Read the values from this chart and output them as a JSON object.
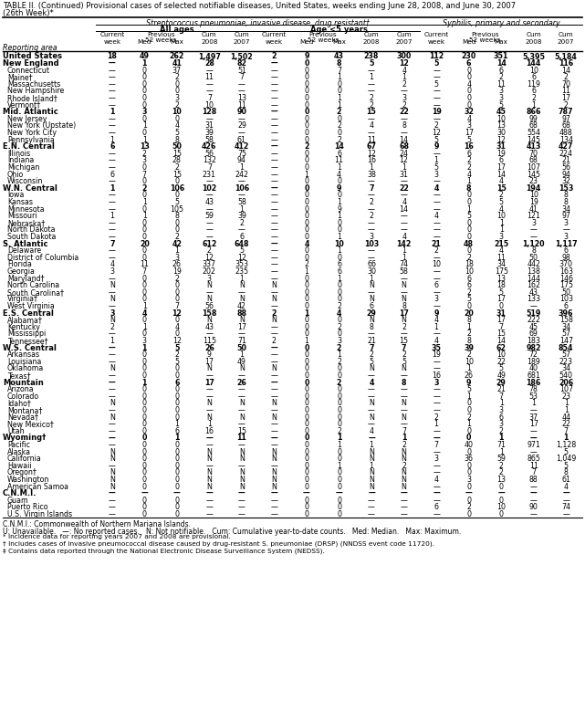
{
  "title1": "TABLE II. (Continued) Provisional cases of selected notifiable diseases, United States, weeks ending June 28, 2008, and June 30, 2007",
  "title2": "(26th Week)*",
  "col_group_title": "Streptococcus pneumoniae, invasive disease, drug resistant†",
  "subgroup1": "All ages",
  "subgroup2": "Age <5 years",
  "subgroup3": "Syphilis, primary and secondary",
  "footnotes": [
    "C.N.M.I.: Commonwealth of Northern Mariana Islands.",
    "U: Unavailable.   —: No reported cases.   N: Not notifiable.   Cum: Cumulative year-to-date counts.   Med: Median.   Max: Maximum.",
    "* Incidence data for reporting years 2007 and 2008 are provisional.",
    "† Includes cases of invasive pneumococcal disease caused by drug-resistant S. pneumoniae (DRSP) (NNDSS event code 11720).",
    "‡ Contains data reported through the National Electronic Disease Surveillance System (NEDSS)."
  ],
  "rows": [
    [
      "United States",
      "18",
      "49",
      "262",
      "1,497",
      "1,502",
      "2",
      "9",
      "43",
      "238",
      "300",
      "112",
      "230",
      "351",
      "5,395",
      "5,184"
    ],
    [
      "New England",
      "—",
      "1",
      "41",
      "28",
      "82",
      "—",
      "0",
      "8",
      "5",
      "12",
      "5",
      "6",
      "14",
      "144",
      "116"
    ],
    [
      "Connecticut",
      "—",
      "0",
      "37",
      "—",
      "51",
      "—",
      "0",
      "7",
      "—",
      "4",
      "—",
      "0",
      "6",
      "10",
      "14"
    ],
    [
      "Maine†",
      "—",
      "0",
      "2",
      "11",
      "7",
      "—",
      "0",
      "1",
      "1",
      "1",
      "—",
      "0",
      "2",
      "6",
      "2"
    ],
    [
      "Massachusetts",
      "—",
      "0",
      "0",
      "—",
      "—",
      "—",
      "0",
      "0",
      "—",
      "2",
      "5",
      "4",
      "11",
      "119",
      "70"
    ],
    [
      "New Hampshire",
      "—",
      "0",
      "0",
      "—",
      "—",
      "—",
      "0",
      "0",
      "—",
      "—",
      "—",
      "0",
      "3",
      "6",
      "11"
    ],
    [
      "Rhode Island†",
      "—",
      "0",
      "3",
      "7",
      "13",
      "—",
      "0",
      "1",
      "2",
      "3",
      "—",
      "0",
      "3",
      "2",
      "17"
    ],
    [
      "Vermont†",
      "—",
      "0",
      "2",
      "10",
      "11",
      "—",
      "0",
      "1",
      "2",
      "2",
      "—",
      "0",
      "5",
      "1",
      "2"
    ],
    [
      "Mid. Atlantic",
      "1",
      "3",
      "10",
      "128",
      "90",
      "—",
      "0",
      "2",
      "15",
      "22",
      "19",
      "32",
      "45",
      "866",
      "787"
    ],
    [
      "New Jersey",
      "—",
      "0",
      "0",
      "—",
      "—",
      "—",
      "0",
      "0",
      "—",
      "—",
      "—",
      "4",
      "10",
      "99",
      "97"
    ],
    [
      "New York (Upstate)",
      "—",
      "1",
      "4",
      "31",
      "29",
      "—",
      "0",
      "2",
      "4",
      "8",
      "2",
      "3",
      "13",
      "68",
      "68"
    ],
    [
      "New York City",
      "—",
      "0",
      "5",
      "39",
      "—",
      "—",
      "0",
      "0",
      "—",
      "—",
      "12",
      "17",
      "30",
      "554",
      "488"
    ],
    [
      "Pennsylvania",
      "1",
      "1",
      "8",
      "58",
      "61",
      "—",
      "0",
      "2",
      "11",
      "14",
      "5",
      "5",
      "12",
      "145",
      "134"
    ],
    [
      "E.N. Central",
      "6",
      "13",
      "50",
      "426",
      "412",
      "—",
      "2",
      "14",
      "67",
      "68",
      "9",
      "16",
      "31",
      "413",
      "427"
    ],
    [
      "Illinois",
      "—",
      "2",
      "15",
      "56",
      "75",
      "—",
      "0",
      "6",
      "12",
      "24",
      "—",
      "6",
      "19",
      "70",
      "224"
    ],
    [
      "Indiana",
      "—",
      "3",
      "28",
      "132",
      "94",
      "—",
      "0",
      "11",
      "16",
      "12",
      "1",
      "2",
      "6",
      "68",
      "21"
    ],
    [
      "Michigan",
      "—",
      "0",
      "2",
      "7",
      "1",
      "—",
      "0",
      "1",
      "1",
      "1",
      "5",
      "2",
      "17",
      "107",
      "56"
    ],
    [
      "Ohio",
      "6",
      "7",
      "15",
      "231",
      "242",
      "—",
      "1",
      "4",
      "38",
      "31",
      "3",
      "4",
      "14",
      "145",
      "94"
    ],
    [
      "Wisconsin",
      "—",
      "0",
      "0",
      "—",
      "—",
      "—",
      "0",
      "0",
      "—",
      "—",
      "—",
      "1",
      "4",
      "23",
      "32"
    ],
    [
      "W.N. Central",
      "1",
      "2",
      "106",
      "102",
      "106",
      "—",
      "0",
      "9",
      "7",
      "22",
      "4",
      "8",
      "15",
      "194",
      "153"
    ],
    [
      "Iowa",
      "—",
      "0",
      "0",
      "—",
      "—",
      "—",
      "0",
      "0",
      "—",
      "—",
      "—",
      "0",
      "2",
      "10",
      "8"
    ],
    [
      "Kansas",
      "—",
      "1",
      "5",
      "43",
      "58",
      "—",
      "0",
      "1",
      "2",
      "4",
      "—",
      "0",
      "5",
      "19",
      "8"
    ],
    [
      "Minnesota",
      "—",
      "0",
      "105",
      "—",
      "1",
      "—",
      "0",
      "9",
      "—",
      "14",
      "—",
      "1",
      "4",
      "41",
      "34"
    ],
    [
      "Missouri",
      "1",
      "1",
      "8",
      "59",
      "39",
      "—",
      "0",
      "1",
      "2",
      "—",
      "4",
      "5",
      "10",
      "121",
      "97"
    ],
    [
      "Nebraska†",
      "—",
      "0",
      "0",
      "—",
      "2",
      "—",
      "0",
      "0",
      "—",
      "—",
      "—",
      "0",
      "1",
      "3",
      "3"
    ],
    [
      "North Dakota",
      "—",
      "0",
      "0",
      "—",
      "—",
      "—",
      "0",
      "0",
      "—",
      "—",
      "—",
      "0",
      "1",
      "—",
      "—"
    ],
    [
      "South Dakota",
      "—",
      "0",
      "2",
      "—",
      "6",
      "—",
      "0",
      "1",
      "3",
      "4",
      "—",
      "0",
      "3",
      "—",
      "3"
    ],
    [
      "S. Atlantic",
      "7",
      "20",
      "42",
      "612",
      "648",
      "—",
      "4",
      "10",
      "103",
      "142",
      "21",
      "48",
      "215",
      "1,120",
      "1,117"
    ],
    [
      "Delaware",
      "—",
      "0",
      "1",
      "2",
      "5",
      "—",
      "0",
      "1",
      "—",
      "1",
      "2",
      "0",
      "4",
      "8",
      "6"
    ],
    [
      "District of Columbia",
      "—",
      "0",
      "3",
      "12",
      "12",
      "—",
      "0",
      "0",
      "—",
      "1",
      "—",
      "2",
      "11",
      "50",
      "98"
    ],
    [
      "Florida",
      "4",
      "11",
      "26",
      "337",
      "353",
      "—",
      "2",
      "6",
      "66",
      "74",
      "10",
      "18",
      "34",
      "442",
      "370"
    ],
    [
      "Georgia",
      "3",
      "7",
      "19",
      "202",
      "235",
      "—",
      "1",
      "6",
      "30",
      "58",
      "—",
      "10",
      "175",
      "138",
      "163"
    ],
    [
      "Maryland†",
      "—",
      "0",
      "2",
      "3",
      "1",
      "—",
      "0",
      "1",
      "1",
      "—",
      "—",
      "6",
      "13",
      "144",
      "146"
    ],
    [
      "North Carolina",
      "N",
      "0",
      "0",
      "N",
      "N",
      "N",
      "0",
      "0",
      "N",
      "N",
      "6",
      "6",
      "18",
      "162",
      "175"
    ],
    [
      "South Carolina†",
      "—",
      "0",
      "0",
      "—",
      "—",
      "—",
      "0",
      "0",
      "—",
      "—",
      "—",
      "2",
      "5",
      "43",
      "50"
    ],
    [
      "Virginia†",
      "N",
      "0",
      "0",
      "N",
      "N",
      "N",
      "0",
      "0",
      "N",
      "N",
      "3",
      "5",
      "17",
      "133",
      "103"
    ],
    [
      "West Virginia",
      "—",
      "1",
      "7",
      "56",
      "42",
      "—",
      "0",
      "2",
      "6",
      "8",
      "—",
      "0",
      "0",
      "—",
      "6"
    ],
    [
      "E.S. Central",
      "3",
      "4",
      "12",
      "158",
      "88",
      "2",
      "1",
      "4",
      "29",
      "17",
      "9",
      "20",
      "31",
      "519",
      "396"
    ],
    [
      "Alabama†",
      "N",
      "0",
      "0",
      "N",
      "N",
      "N",
      "0",
      "0",
      "N",
      "N",
      "4",
      "8",
      "17",
      "222",
      "158"
    ],
    [
      "Kentucky",
      "2",
      "1",
      "4",
      "43",
      "17",
      "—",
      "0",
      "2",
      "8",
      "2",
      "1",
      "1",
      "7",
      "45",
      "34"
    ],
    [
      "Mississippi",
      "—",
      "0",
      "0",
      "—",
      "—",
      "—",
      "0",
      "0",
      "—",
      "—",
      "—",
      "2",
      "15",
      "69",
      "57"
    ],
    [
      "Tennessee†",
      "1",
      "3",
      "12",
      "115",
      "71",
      "2",
      "1",
      "3",
      "21",
      "15",
      "4",
      "8",
      "14",
      "183",
      "147"
    ],
    [
      "W.S. Central",
      "—",
      "1",
      "5",
      "26",
      "50",
      "—",
      "0",
      "2",
      "7",
      "7",
      "35",
      "39",
      "62",
      "982",
      "854"
    ],
    [
      "Arkansas",
      "—",
      "0",
      "2",
      "9",
      "1",
      "—",
      "0",
      "1",
      "2",
      "2",
      "19",
      "2",
      "10",
      "72",
      "57"
    ],
    [
      "Louisiana",
      "—",
      "0",
      "5",
      "17",
      "49",
      "—",
      "0",
      "2",
      "5",
      "5",
      "—",
      "10",
      "22",
      "189",
      "223"
    ],
    [
      "Oklahoma",
      "N",
      "0",
      "0",
      "N",
      "N",
      "N",
      "0",
      "0",
      "N",
      "N",
      "—",
      "1",
      "5",
      "40",
      "34"
    ],
    [
      "Texas†",
      "—",
      "0",
      "0",
      "—",
      "—",
      "—",
      "0",
      "0",
      "—",
      "—",
      "16",
      "26",
      "49",
      "681",
      "540"
    ],
    [
      "Mountain",
      "—",
      "1",
      "6",
      "17",
      "26",
      "—",
      "0",
      "2",
      "4",
      "8",
      "3",
      "9",
      "29",
      "186",
      "206"
    ],
    [
      "Arizona",
      "—",
      "0",
      "0",
      "—",
      "—",
      "—",
      "0",
      "0",
      "—",
      "—",
      "—",
      "5",
      "21",
      "78",
      "107"
    ],
    [
      "Colorado",
      "—",
      "0",
      "0",
      "—",
      "—",
      "—",
      "0",
      "0",
      "—",
      "—",
      "—",
      "1",
      "7",
      "53",
      "23"
    ],
    [
      "Idaho†",
      "N",
      "0",
      "0",
      "N",
      "N",
      "N",
      "0",
      "0",
      "N",
      "N",
      "—",
      "0",
      "1",
      "1",
      "1"
    ],
    [
      "Montana†",
      "—",
      "0",
      "0",
      "—",
      "—",
      "—",
      "0",
      "0",
      "—",
      "—",
      "—",
      "0",
      "3",
      "—",
      "1"
    ],
    [
      "Nevada†",
      "N",
      "0",
      "0",
      "N",
      "N",
      "N",
      "0",
      "0",
      "N",
      "N",
      "2",
      "2",
      "6",
      "37",
      "44"
    ],
    [
      "New Mexico†",
      "—",
      "0",
      "1",
      "1",
      "—",
      "—",
      "0",
      "0",
      "—",
      "—",
      "1",
      "1",
      "3",
      "17",
      "22"
    ],
    [
      "Utah",
      "—",
      "0",
      "6",
      "16",
      "15",
      "—",
      "0",
      "2",
      "4",
      "7",
      "—",
      "0",
      "2",
      "—",
      "7"
    ],
    [
      "Wyoming†",
      "—",
      "0",
      "1",
      "—",
      "11",
      "—",
      "0",
      "1",
      "—",
      "1",
      "—",
      "0",
      "1",
      "—",
      "1"
    ],
    [
      "Pacific",
      "—",
      "0",
      "0",
      "—",
      "—",
      "—",
      "0",
      "1",
      "1",
      "2",
      "7",
      "40",
      "71",
      "971",
      "1,128"
    ],
    [
      "Alaska",
      "N",
      "0",
      "0",
      "N",
      "N",
      "N",
      "0",
      "0",
      "N",
      "N",
      "—",
      "0",
      "1",
      "—",
      "5"
    ],
    [
      "California",
      "N",
      "0",
      "0",
      "N",
      "N",
      "N",
      "0",
      "0",
      "N",
      "N",
      "3",
      "36",
      "59",
      "865",
      "1,049"
    ],
    [
      "Hawaii",
      "—",
      "0",
      "0",
      "—",
      "—",
      "—",
      "0",
      "1",
      "1",
      "2",
      "—",
      "0",
      "2",
      "11",
      "5"
    ],
    [
      "Oregon†",
      "N",
      "0",
      "0",
      "N",
      "N",
      "N",
      "0",
      "0",
      "N",
      "N",
      "—",
      "0",
      "2",
      "7",
      "8"
    ],
    [
      "Washington",
      "N",
      "0",
      "0",
      "N",
      "N",
      "N",
      "0",
      "0",
      "N",
      "N",
      "4",
      "3",
      "13",
      "88",
      "61"
    ],
    [
      "American Samoa",
      "N",
      "0",
      "0",
      "N",
      "N",
      "N",
      "0",
      "0",
      "N",
      "N",
      "—",
      "0",
      "0",
      "—",
      "4"
    ],
    [
      "C.N.M.I.",
      "—",
      "—",
      "—",
      "—",
      "—",
      "—",
      "—",
      "—",
      "—",
      "—",
      "—",
      "—",
      "—",
      "—",
      "—"
    ],
    [
      "Guam",
      "—",
      "0",
      "0",
      "—",
      "—",
      "—",
      "0",
      "0",
      "—",
      "—",
      "—",
      "0",
      "0",
      "—",
      "—"
    ],
    [
      "Puerto Rico",
      "—",
      "0",
      "0",
      "—",
      "—",
      "—",
      "0",
      "0",
      "—",
      "—",
      "6",
      "2",
      "10",
      "90",
      "74"
    ],
    [
      "U.S. Virgin Islands",
      "—",
      "0",
      "0",
      "—",
      "—",
      "—",
      "0",
      "0",
      "—",
      "—",
      "—",
      "0",
      "0",
      "—",
      "—"
    ]
  ],
  "bold_rows": [
    0,
    1,
    8,
    13,
    19,
    27,
    37,
    42,
    47,
    55,
    63
  ],
  "spacer_rows": [
    63
  ],
  "bg_rows": [
    0
  ]
}
